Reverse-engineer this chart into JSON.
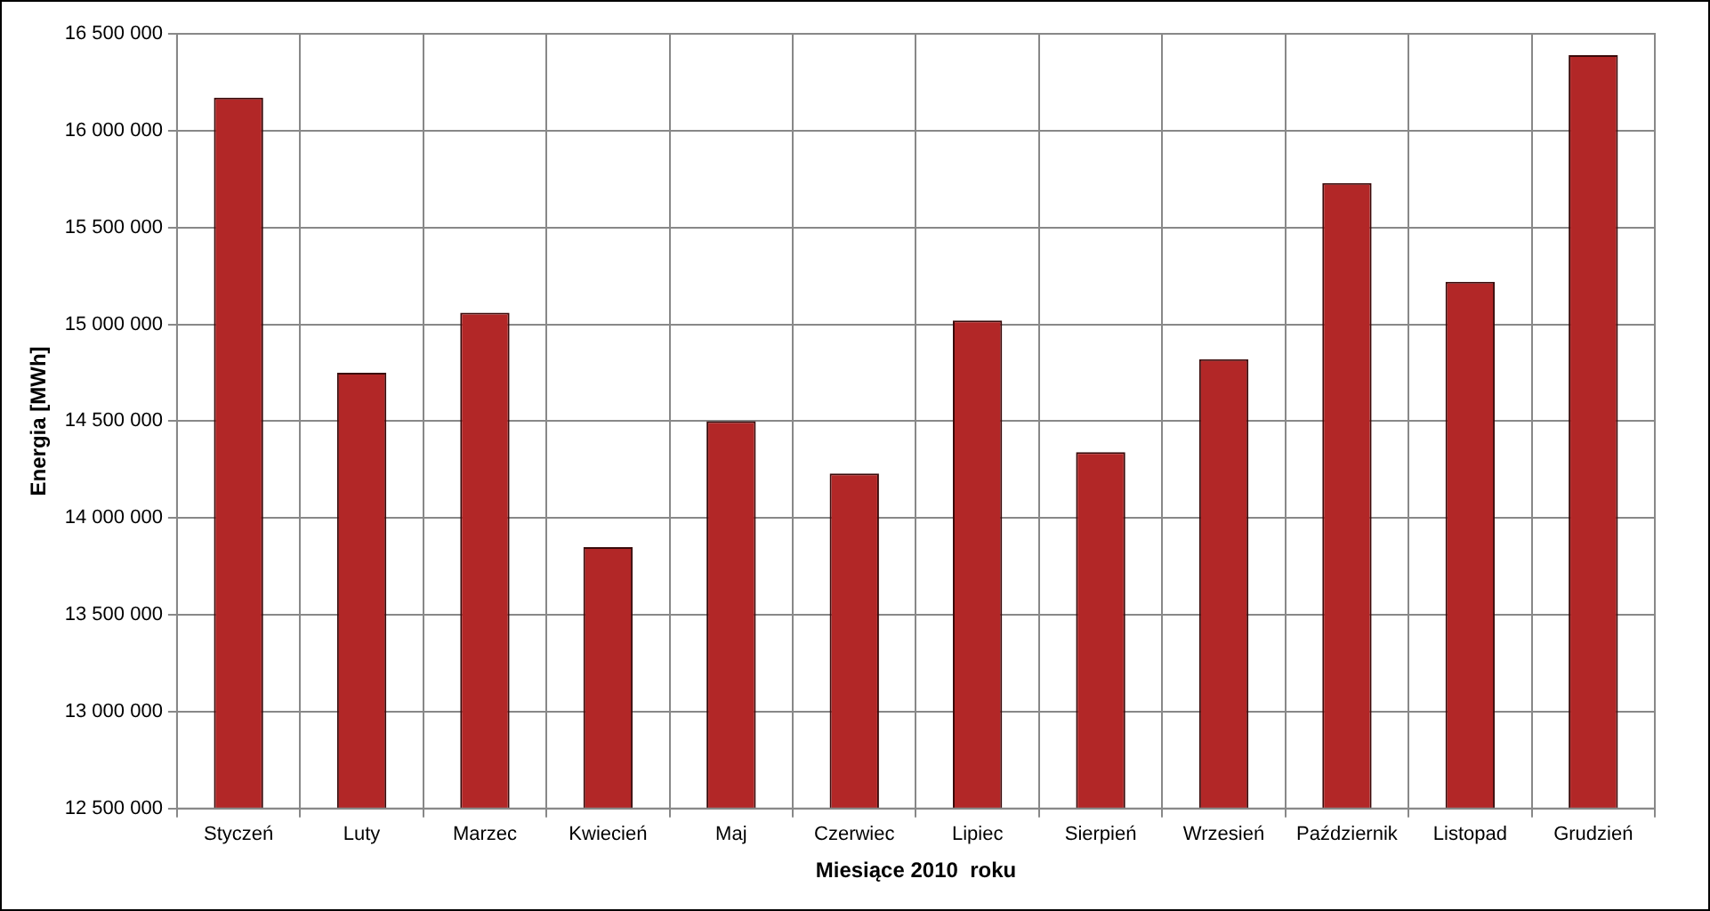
{
  "chart_data": {
    "type": "bar",
    "xlabel": "Miesiące 2010  roku",
    "ylabel": "Energia [MWh]",
    "categories": [
      "Styczeń",
      "Luty",
      "Marzec",
      "Kwiecień",
      "Maj",
      "Czerwiec",
      "Lipiec",
      "Sierpień",
      "Wrzesień",
      "Październik",
      "Listopad",
      "Grudzień"
    ],
    "values": [
      16170000,
      14750000,
      15060000,
      13850000,
      14500000,
      14230000,
      15020000,
      14340000,
      14820000,
      15730000,
      15220000,
      16390000
    ],
    "color": "#b22727",
    "ylim": [
      12500000,
      16500000
    ],
    "yticks": [
      {
        "value": 12500000,
        "label": "12 500 000"
      },
      {
        "value": 13000000,
        "label": "13 000 000"
      },
      {
        "value": 13500000,
        "label": "13 500 000"
      },
      {
        "value": 14000000,
        "label": "14 000 000"
      },
      {
        "value": 14500000,
        "label": "14 500 000"
      },
      {
        "value": 15000000,
        "label": "15 000 000"
      },
      {
        "value": 15500000,
        "label": "15 500 000"
      },
      {
        "value": 16000000,
        "label": "16 000 000"
      },
      {
        "value": 16500000,
        "label": "16 500 000"
      }
    ],
    "grid": true,
    "legend": false
  }
}
